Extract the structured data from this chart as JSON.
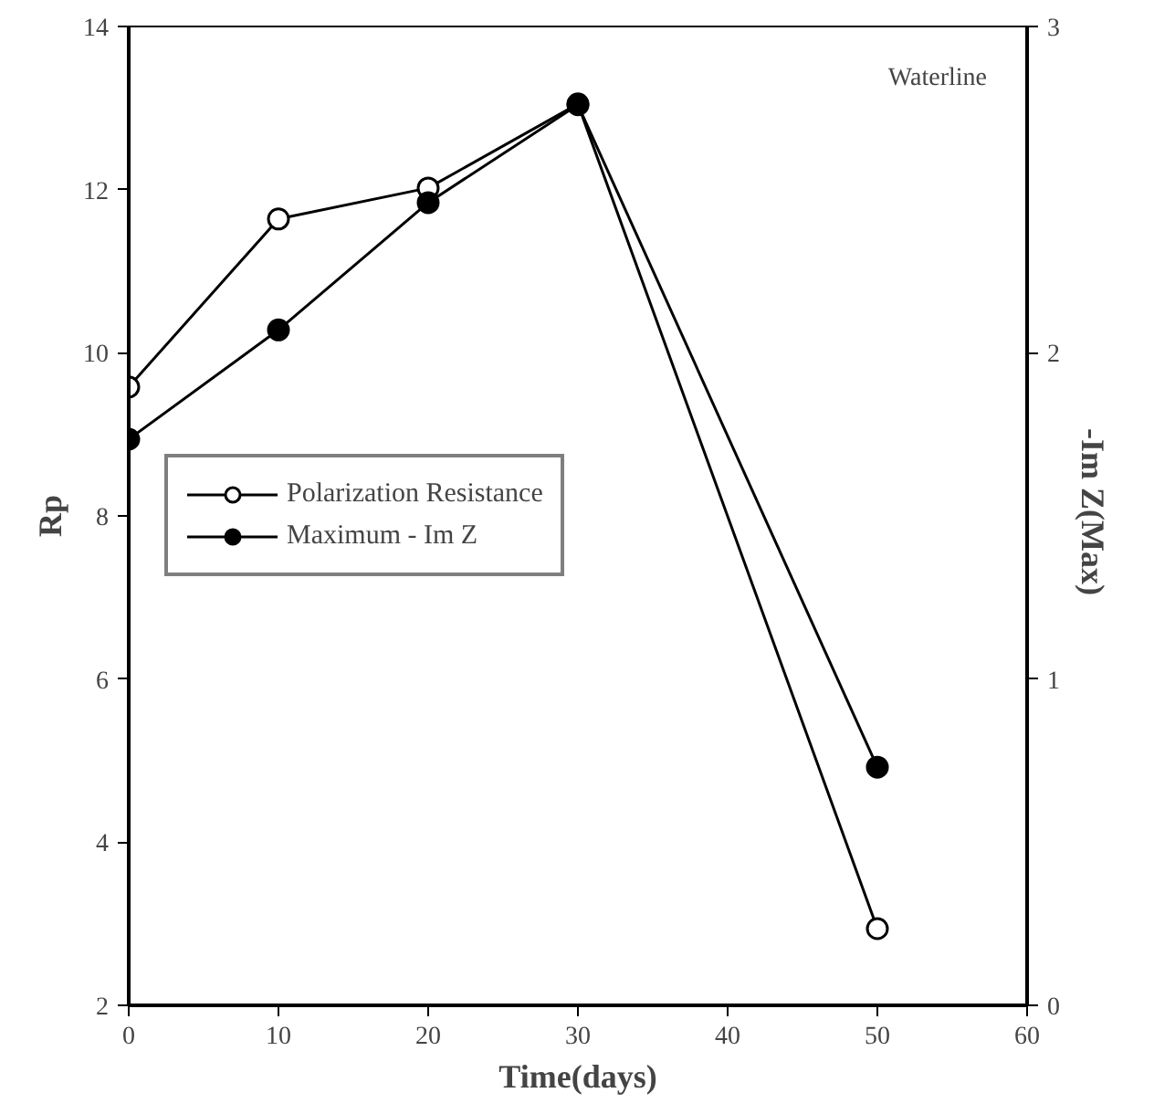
{
  "chart_data": {
    "type": "line",
    "xlabel": "Time(days)",
    "ylabel": "Rp",
    "y2label": "-Im  Z(Max)",
    "annotations": [
      "Waterline"
    ],
    "x": [
      0,
      10,
      20,
      30,
      50
    ],
    "series": [
      {
        "name": "Polarization Resistance",
        "color": "#000000",
        "values": [
          9.58,
          11.64,
          12.02,
          13.05,
          2.94
        ]
      },
      {
        "name": "Maximum - Im Z",
        "color": "#000000",
        "axis": "y2",
        "values": [
          1.735,
          2.07,
          2.46,
          2.76,
          0.73
        ]
      }
    ],
    "xlim": [
      0,
      60
    ],
    "xticks": [
      0,
      10,
      20,
      30,
      40,
      50,
      60
    ],
    "ylim": [
      2,
      14
    ],
    "yticks": [
      2,
      4,
      6,
      8,
      10,
      12,
      14
    ],
    "y2lim": [
      0,
      3
    ],
    "y2ticks": [
      0,
      1,
      2,
      3
    ],
    "marker": "circle",
    "line_style": "solid",
    "grid": false,
    "legend": "center left"
  }
}
